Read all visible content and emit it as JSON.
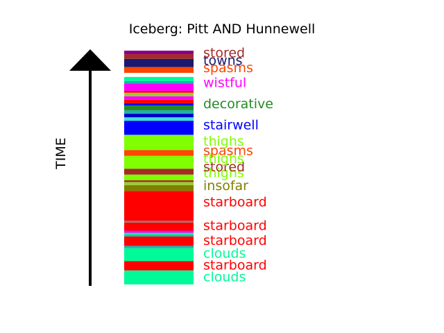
{
  "chart_data": {
    "type": "bar",
    "title": "Iceberg: Pitt AND Hunnewell",
    "ylabel": "TIME",
    "xlabel": "",
    "ylim": [
      0,
      100
    ],
    "segments": [
      {
        "y0": 0.0,
        "y1": 6.0,
        "color": "#00fa9a"
      },
      {
        "y0": 6.0,
        "y1": 10.0,
        "color": "#ff0000"
      },
      {
        "y0": 10.0,
        "y1": 15.5,
        "color": "#00fa9a"
      },
      {
        "y0": 15.5,
        "y1": 16.5,
        "color": "#20b2aa"
      },
      {
        "y0": 16.5,
        "y1": 20.5,
        "color": "#ff0000"
      },
      {
        "y0": 20.5,
        "y1": 21.3,
        "color": "#20b2aa"
      },
      {
        "y0": 21.3,
        "y1": 22.1,
        "color": "#00fa9a"
      },
      {
        "y0": 22.1,
        "y1": 23.0,
        "color": "#ff00ff"
      },
      {
        "y0": 23.0,
        "y1": 26.5,
        "color": "#ff0000"
      },
      {
        "y0": 26.5,
        "y1": 27.2,
        "color": "#808080"
      },
      {
        "y0": 27.2,
        "y1": 40.0,
        "color": "#ff0000"
      },
      {
        "y0": 40.0,
        "y1": 42.5,
        "color": "#808000"
      },
      {
        "y0": 42.5,
        "y1": 43.8,
        "color": "#9acd32"
      },
      {
        "y0": 43.8,
        "y1": 44.6,
        "color": "#a52a2a"
      },
      {
        "y0": 44.6,
        "y1": 47.0,
        "color": "#7fff00"
      },
      {
        "y0": 47.0,
        "y1": 49.5,
        "color": "#a52a2a"
      },
      {
        "y0": 49.5,
        "y1": 55.0,
        "color": "#7fff00"
      },
      {
        "y0": 55.0,
        "y1": 57.5,
        "color": "#ff4500"
      },
      {
        "y0": 57.5,
        "y1": 64.0,
        "color": "#7fff00"
      },
      {
        "y0": 64.0,
        "y1": 70.0,
        "color": "#0000ff"
      },
      {
        "y0": 70.0,
        "y1": 71.5,
        "color": "#40e0d0"
      },
      {
        "y0": 71.5,
        "y1": 73.0,
        "color": "#0000cd"
      },
      {
        "y0": 73.0,
        "y1": 74.5,
        "color": "#20b2aa"
      },
      {
        "y0": 74.5,
        "y1": 76.5,
        "color": "#228b22"
      },
      {
        "y0": 76.5,
        "y1": 77.5,
        "color": "#0000ff"
      },
      {
        "y0": 77.5,
        "y1": 79.0,
        "color": "#ff0000"
      },
      {
        "y0": 79.0,
        "y1": 80.5,
        "color": "#ff00ff"
      },
      {
        "y0": 80.5,
        "y1": 82.0,
        "color": "#9acd32"
      },
      {
        "y0": 82.0,
        "y1": 82.8,
        "color": "#ff0000"
      },
      {
        "y0": 82.8,
        "y1": 86.0,
        "color": "#ff00ff"
      },
      {
        "y0": 86.0,
        "y1": 87.0,
        "color": "#20b2aa"
      },
      {
        "y0": 87.0,
        "y1": 88.8,
        "color": "#00fa9a"
      },
      {
        "y0": 88.8,
        "y1": 90.5,
        "color": "#ffffff"
      },
      {
        "y0": 90.5,
        "y1": 93.0,
        "color": "#ff4500"
      },
      {
        "y0": 93.0,
        "y1": 96.5,
        "color": "#191970"
      },
      {
        "y0": 96.5,
        "y1": 98.5,
        "color": "#a52a2a"
      },
      {
        "y0": 98.5,
        "y1": 100.0,
        "color": "#8b008b"
      }
    ],
    "labels": [
      {
        "text": "clouds",
        "y": 3.0,
        "color": "#00fa9a"
      },
      {
        "text": "starboard",
        "y": 8.0,
        "color": "#ff0000"
      },
      {
        "text": "clouds",
        "y": 13.0,
        "color": "#00fa9a"
      },
      {
        "text": "starboard",
        "y": 18.5,
        "color": "#ff0000"
      },
      {
        "text": "starboard",
        "y": 25.0,
        "color": "#ff0000"
      },
      {
        "text": "starboard",
        "y": 35.0,
        "color": "#ff0000"
      },
      {
        "text": "insofar",
        "y": 42.0,
        "color": "#808000"
      },
      {
        "text": "thighs",
        "y": 47.5,
        "color": "#7fff00"
      },
      {
        "text": "stored",
        "y": 50.0,
        "color": "#a52a2a"
      },
      {
        "text": "thighs",
        "y": 53.5,
        "color": "#7fff00"
      },
      {
        "text": "spasms",
        "y": 57.0,
        "color": "#ff4500"
      },
      {
        "text": "thighs",
        "y": 61.0,
        "color": "#7fff00"
      },
      {
        "text": "stairwell",
        "y": 68.0,
        "color": "#0000ff"
      },
      {
        "text": "decorative",
        "y": 77.0,
        "color": "#228b22"
      },
      {
        "text": "wistful",
        "y": 86.0,
        "color": "#ff00ff"
      },
      {
        "text": "spasms",
        "y": 92.5,
        "color": "#ff4500"
      },
      {
        "text": "towns",
        "y": 95.5,
        "color": "#191970"
      },
      {
        "text": "stored",
        "y": 98.8,
        "color": "#a52a2a"
      }
    ]
  }
}
